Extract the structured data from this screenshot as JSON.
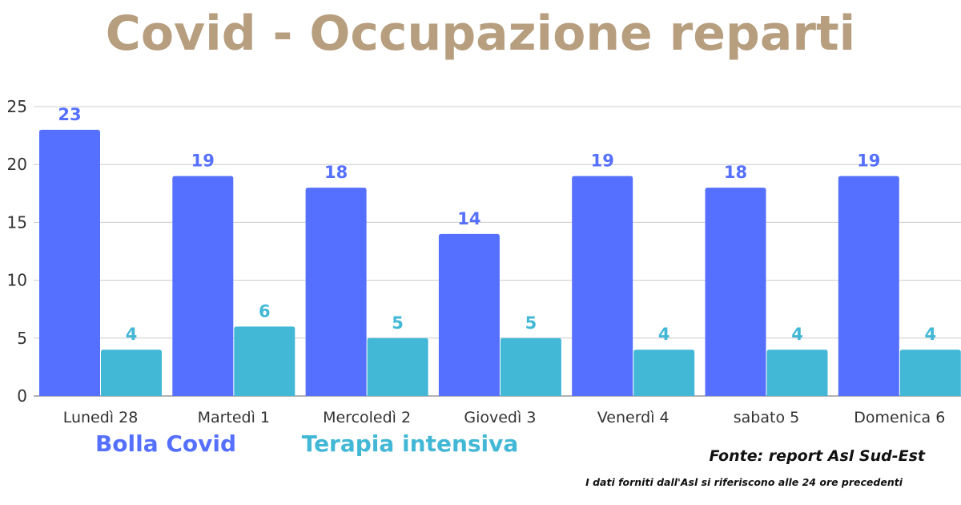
{
  "chart_data": {
    "type": "bar",
    "title": "Covid - Occupazione reparti",
    "categories": [
      "Lunedì 28",
      "Martedì 1",
      "Mercoledì 2",
      "Giovedì 3",
      "Venerdì 4",
      "sabato 5",
      "Domenica 6"
    ],
    "series": [
      {
        "name": "Bolla Covid",
        "values": [
          23,
          19,
          18,
          14,
          19,
          18,
          19
        ],
        "color": "#5570ff"
      },
      {
        "name": "Terapia intensiva",
        "values": [
          4,
          6,
          5,
          5,
          4,
          4,
          4
        ],
        "color": "#42b8d6"
      }
    ],
    "ylim": [
      0,
      25
    ],
    "yticks": [
      0,
      5,
      10,
      15,
      20,
      25
    ],
    "grid": true,
    "legend_placement": "bottom-left",
    "xlabel": "",
    "ylabel": ""
  },
  "colors": {
    "title": "#b69e7e",
    "grid": "#cccccc",
    "baseline": "#999999"
  },
  "source": "Fonte: report Asl Sud-Est",
  "note": "I dati forniti dall'Asl si riferiscono alle 24 ore precedenti"
}
